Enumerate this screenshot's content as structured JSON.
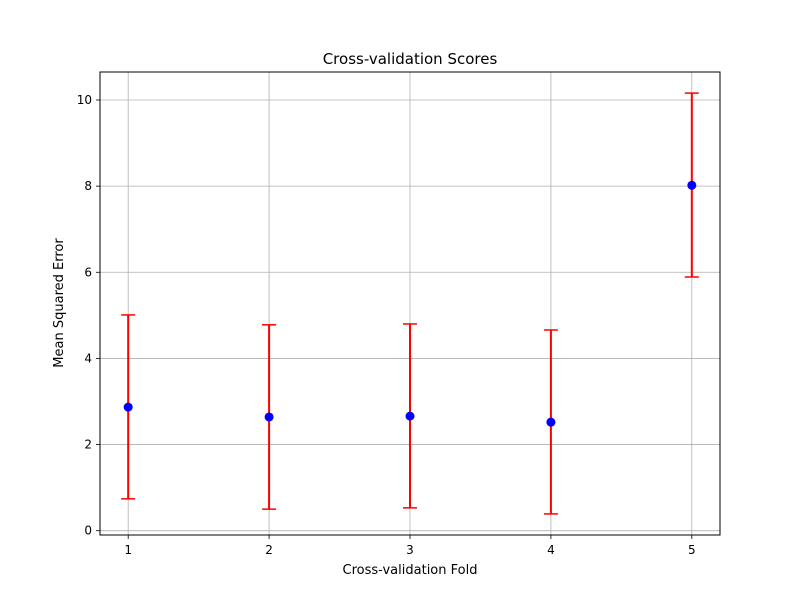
{
  "chart_data": {
    "type": "scatter",
    "title": "Cross-validation Scores",
    "xlabel": "Cross-validation Fold",
    "ylabel": "Mean Squared Error",
    "x": [
      1,
      2,
      3,
      4,
      5
    ],
    "y": [
      2.87,
      2.64,
      2.66,
      2.52,
      8.02
    ],
    "yerr_lower": [
      0.74,
      0.5,
      0.53,
      0.39,
      5.89
    ],
    "yerr_upper": [
      5.01,
      4.78,
      4.8,
      4.66,
      10.16
    ],
    "xlim": [
      0.8,
      5.2
    ],
    "ylim": [
      -0.1,
      10.65
    ],
    "xticks": [
      1,
      2,
      3,
      4,
      5
    ],
    "xtick_labels": [
      "1",
      "2",
      "3",
      "4",
      "5"
    ],
    "yticks": [
      0,
      2,
      4,
      6,
      8,
      10
    ],
    "ytick_labels": [
      "0",
      "2",
      "4",
      "6",
      "8",
      "10"
    ],
    "grid": true,
    "colors": {
      "marker": "#0000ff",
      "errorbar": "#ff0000",
      "grid": "#b0b0b0"
    }
  }
}
